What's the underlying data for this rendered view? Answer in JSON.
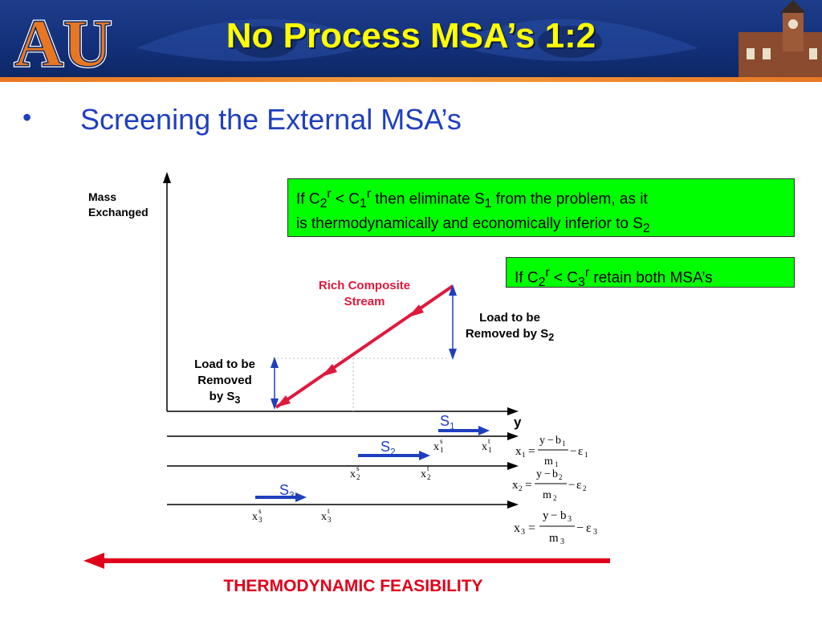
{
  "slide": {
    "title": "No Process MSA’s 1:2",
    "bullet": "Screening the External MSA’s"
  },
  "diagram": {
    "yaxis_label_line1": "Mass",
    "yaxis_label_line2": "Exchanged",
    "rich_stream_line1": "Rich Composite",
    "rich_stream_line2": "Stream",
    "load_s2_line1": "Load to be",
    "load_s2_line2": "Removed by S",
    "load_s2_sub": "2",
    "load_s3_line1": "Load to be",
    "load_s3_line2": "Removed",
    "load_s3_line3": "by S",
    "load_s3_sub": "3",
    "y_label": "y",
    "s1": "S",
    "s1_sub": "1",
    "s2": "S",
    "s2_sub": "2",
    "s3": "S",
    "s3_sub": "3",
    "box1": {
      "if": "If C",
      "c2_sub": "2",
      "c2_sup": "r",
      "lt": " < C",
      "c1_sub": "1",
      "c1_sup": "r",
      "then": " then eliminate S",
      "s1_sub": "1",
      "rest1": " from the problem, as it",
      "rest2": "is thermodynamically and economically inferior to S",
      "s2_sub": "2"
    },
    "box2": {
      "if": "If C",
      "c2_sub": "2",
      "c2_sup": "r",
      "lt": " < C",
      "c3_sub": "3",
      "c3_sup": "r",
      "rest": " retain both MSA’s"
    },
    "footer": "THERMODYNAMIC FEASIBILITY",
    "colors": {
      "accent_blue": "#1f3fbf",
      "rich_red": "#e0183c",
      "box_green": "#00ff00",
      "banner_blue": "#13307a",
      "title_yellow": "#ffff00"
    }
  }
}
